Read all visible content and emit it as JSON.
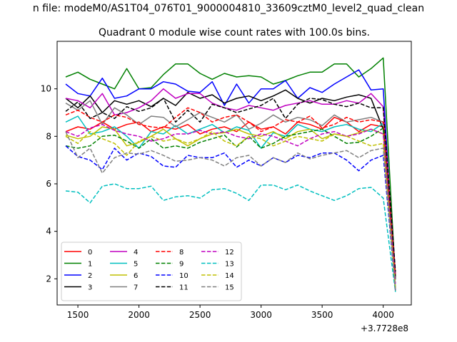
{
  "header": {
    "suptitle": "n file: modeM0/AS1T04_076T01_9000004810_33609cztM0_level2_quad_clean",
    "title": "Quadrant 0 module wise count rates with 100.0s bins."
  },
  "chart_data": {
    "type": "line",
    "title": "Quadrant 0 module wise count rates with 100.0s bins.",
    "xlabel": "",
    "ylabel": "",
    "x_offset_label": "+3.7728e8",
    "xlim": [
      1330,
      4230
    ],
    "ylim": [
      0.9,
      12.0
    ],
    "xticks": [
      1500,
      2000,
      2500,
      3000,
      3500,
      4000
    ],
    "yticks": [
      2,
      4,
      6,
      8,
      10
    ],
    "xtick_labels": [
      "1500",
      "2000",
      "2500",
      "3000",
      "3500",
      "4000"
    ],
    "ytick_labels": [
      "2",
      "4",
      "6",
      "8",
      "10"
    ],
    "grid": false,
    "legend": "lower-left",
    "legend_columns": 4,
    "x": [
      1400,
      1500,
      1600,
      1700,
      1800,
      1900,
      2000,
      2100,
      2200,
      2300,
      2400,
      2500,
      2600,
      2700,
      2800,
      2900,
      3000,
      3100,
      3200,
      3300,
      3400,
      3500,
      3600,
      3700,
      3800,
      3900,
      4000,
      4100
    ],
    "series": [
      {
        "name": "0",
        "color": "#ff0000",
        "dash": "solid",
        "values": [
          8.2,
          8.4,
          8.3,
          8.6,
          8.3,
          8.5,
          8.6,
          8.2,
          8.4,
          8.3,
          8.5,
          8.1,
          8.3,
          8.4,
          8.2,
          8.6,
          8.3,
          8.4,
          8.1,
          8.6,
          8.5,
          8.3,
          8.8,
          8.6,
          8.2,
          8.5,
          8.4,
          2.0
        ]
      },
      {
        "name": "1",
        "color": "#008000",
        "dash": "solid",
        "values": [
          10.5,
          10.7,
          10.4,
          10.2,
          10.0,
          10.85,
          10.0,
          10.05,
          10.6,
          11.05,
          11.05,
          10.65,
          10.4,
          10.65,
          10.5,
          10.55,
          10.5,
          10.2,
          10.35,
          10.55,
          10.7,
          10.7,
          11.05,
          11.05,
          10.5,
          10.85,
          11.3,
          2.0
        ]
      },
      {
        "name": "2",
        "color": "#0000ff",
        "dash": "solid",
        "values": [
          10.2,
          9.8,
          9.7,
          10.45,
          9.6,
          9.7,
          10.0,
          10.0,
          10.3,
          10.2,
          9.9,
          9.85,
          10.3,
          9.3,
          10.2,
          9.4,
          10.0,
          10.0,
          10.35,
          9.6,
          10.05,
          9.85,
          10.2,
          10.5,
          10.8,
          9.95,
          10.0,
          1.5
        ]
      },
      {
        "name": "3",
        "color": "#000000",
        "dash": "solid",
        "values": [
          9.6,
          9.2,
          9.7,
          9.0,
          9.5,
          9.35,
          9.5,
          9.25,
          9.6,
          9.3,
          9.85,
          9.6,
          9.75,
          9.4,
          9.6,
          9.7,
          9.5,
          9.7,
          9.95,
          9.6,
          9.4,
          9.6,
          9.5,
          9.65,
          9.75,
          9.6,
          8.3,
          2.1
        ]
      },
      {
        "name": "4",
        "color": "#c000c0",
        "dash": "solid",
        "values": [
          9.6,
          9.5,
          9.2,
          9.8,
          8.9,
          9.0,
          9.2,
          9.5,
          10.0,
          9.6,
          9.8,
          9.8,
          9.4,
          9.2,
          9.1,
          9.3,
          9.2,
          9.1,
          9.3,
          9.4,
          9.5,
          9.35,
          9.35,
          9.5,
          9.4,
          9.8,
          9.25,
          2.2
        ]
      },
      {
        "name": "5",
        "color": "#00bfbf",
        "dash": "solid",
        "values": [
          8.6,
          8.85,
          8.1,
          8.2,
          8.4,
          8.0,
          7.5,
          8.2,
          8.1,
          8.45,
          8.1,
          8.3,
          8.5,
          8.15,
          8.4,
          8.25,
          7.5,
          8.15,
          8.0,
          8.5,
          8.3,
          8.2,
          8.4,
          8.5,
          8.3,
          8.2,
          8.55,
          1.6
        ]
      },
      {
        "name": "6",
        "color": "#bfbf00",
        "dash": "solid",
        "values": [
          8.05,
          7.9,
          8.0,
          8.4,
          8.3,
          7.6,
          7.75,
          8.0,
          8.3,
          7.9,
          7.6,
          7.9,
          8.1,
          8.15,
          8.3,
          8.1,
          8.0,
          8.2,
          7.9,
          8.2,
          8.3,
          7.9,
          8.1,
          8.0,
          8.15,
          8.3,
          8.1,
          1.5
        ]
      },
      {
        "name": "7",
        "color": "#808080",
        "dash": "solid",
        "values": [
          9.4,
          9.1,
          9.5,
          8.5,
          9.2,
          8.9,
          8.5,
          8.85,
          8.8,
          8.4,
          8.7,
          9.0,
          8.8,
          8.6,
          8.9,
          8.3,
          8.55,
          8.9,
          8.6,
          8.8,
          8.7,
          8.45,
          8.9,
          8.6,
          8.7,
          8.8,
          8.6,
          1.6
        ]
      },
      {
        "name": "8",
        "color": "#ff0000",
        "dash": "dashed",
        "values": [
          8.9,
          9.1,
          8.8,
          8.6,
          8.9,
          8.8,
          8.5,
          8.4,
          8.35,
          8.8,
          9.2,
          9.0,
          8.6,
          8.8,
          8.9,
          8.6,
          8.2,
          8.4,
          8.7,
          8.6,
          8.85,
          8.35,
          8.5,
          8.8,
          8.6,
          8.7,
          8.6,
          2.2
        ]
      },
      {
        "name": "9",
        "color": "#008000",
        "dash": "dashed",
        "values": [
          7.6,
          7.5,
          7.6,
          8.0,
          8.05,
          7.8,
          7.5,
          7.9,
          7.5,
          7.6,
          7.5,
          7.75,
          7.9,
          8.05,
          7.55,
          8.0,
          7.5,
          7.7,
          8.0,
          8.1,
          8.2,
          8.3,
          8.0,
          7.7,
          7.75,
          8.0,
          8.35,
          1.9
        ]
      },
      {
        "name": "10",
        "color": "#0000ff",
        "dash": "dashed",
        "values": [
          7.6,
          7.15,
          7.0,
          6.6,
          7.5,
          7.0,
          7.3,
          7.15,
          6.75,
          6.7,
          7.2,
          7.1,
          7.1,
          7.3,
          6.7,
          7.0,
          6.75,
          7.1,
          6.9,
          7.2,
          7.1,
          7.3,
          7.3,
          7.0,
          6.55,
          7.0,
          7.2,
          1.5
        ]
      },
      {
        "name": "11",
        "color": "#000000",
        "dash": "dashed",
        "values": [
          9.05,
          9.45,
          8.75,
          9.0,
          8.75,
          9.25,
          9.05,
          9.2,
          9.6,
          8.6,
          9.1,
          8.6,
          9.35,
          9.2,
          9.0,
          9.15,
          9.3,
          9.6,
          8.75,
          9.35,
          9.6,
          9.55,
          9.35,
          9.25,
          9.4,
          9.2,
          9.2,
          2.3
        ]
      },
      {
        "name": "12",
        "color": "#c000c0",
        "dash": "dashed",
        "values": [
          8.2,
          8.0,
          8.35,
          8.5,
          8.25,
          8.1,
          8.0,
          7.8,
          7.9,
          8.1,
          8.1,
          8.25,
          8.1,
          8.2,
          8.0,
          7.9,
          8.1,
          8.0,
          7.8,
          7.6,
          7.9,
          8.1,
          8.2,
          8.0,
          8.1,
          8.3,
          8.1,
          1.8
        ]
      },
      {
        "name": "13",
        "color": "#00bfbf",
        "dash": "dashed",
        "values": [
          5.7,
          5.65,
          5.2,
          5.9,
          6.0,
          5.8,
          5.8,
          5.9,
          5.3,
          5.45,
          5.5,
          5.4,
          5.75,
          5.8,
          5.6,
          5.3,
          5.95,
          5.95,
          5.75,
          5.95,
          5.7,
          5.5,
          5.3,
          5.5,
          5.8,
          5.85,
          5.4,
          1.45
        ]
      },
      {
        "name": "14",
        "color": "#bfbf00",
        "dash": "dashed",
        "values": [
          8.0,
          7.7,
          8.2,
          7.9,
          7.7,
          7.2,
          7.8,
          8.0,
          7.8,
          7.9,
          7.7,
          7.9,
          8.2,
          7.8,
          7.6,
          8.0,
          7.9,
          7.6,
          7.8,
          8.0,
          7.9,
          7.8,
          8.1,
          8.0,
          7.8,
          7.6,
          7.7,
          1.6
        ]
      },
      {
        "name": "15",
        "color": "#808080",
        "dash": "dashed",
        "values": [
          8.2,
          7.1,
          7.5,
          6.45,
          7.1,
          7.3,
          7.25,
          7.4,
          7.2,
          6.95,
          7.0,
          7.1,
          7.0,
          6.75,
          7.1,
          7.2,
          6.75,
          7.1,
          6.9,
          7.3,
          7.05,
          7.2,
          7.3,
          7.4,
          7.1,
          7.4,
          7.5,
          1.5
        ]
      }
    ]
  }
}
